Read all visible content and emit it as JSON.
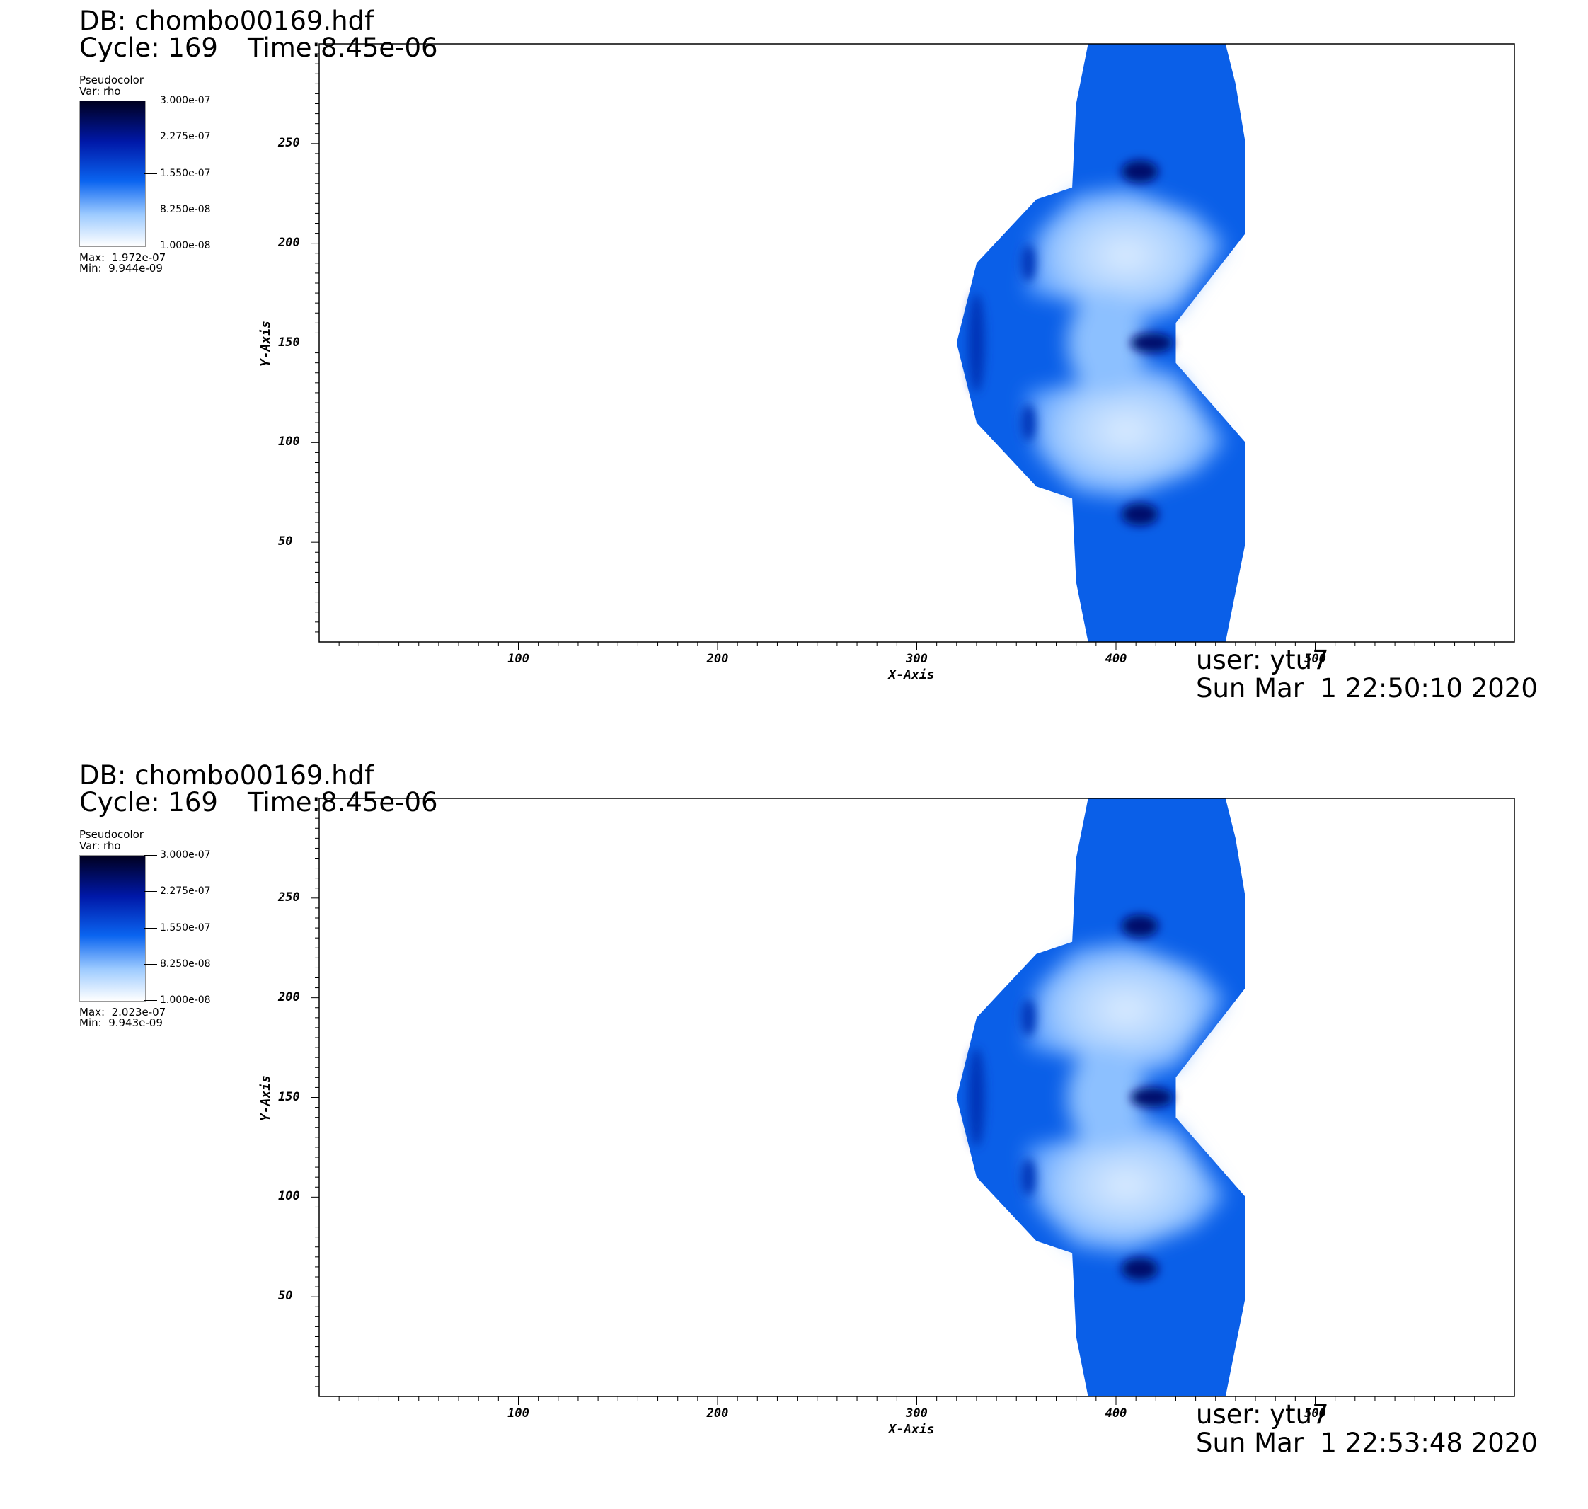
{
  "panels": [
    {
      "db": "DB: chombo00169.hdf",
      "cycle": "Cycle: 169",
      "time": "Time:8.45e-06",
      "legend": {
        "plot_type": "Pseudocolor",
        "var": "Var: rho",
        "ticks": [
          "3.000e-07",
          "2.275e-07",
          "1.550e-07",
          "8.250e-08",
          "1.000e-08"
        ],
        "max": "Max:  1.972e-07",
        "min": "Min:  9.944e-09"
      },
      "user": "user: ytu7",
      "date": "Sun Mar  1 22:50:10 2020"
    },
    {
      "db": "DB: chombo00169.hdf",
      "cycle": "Cycle: 169",
      "time": "Time:8.45e-06",
      "legend": {
        "plot_type": "Pseudocolor",
        "var": "Var: rho",
        "ticks": [
          "3.000e-07",
          "2.275e-07",
          "1.550e-07",
          "8.250e-08",
          "1.000e-08"
        ],
        "max": "Max:  2.023e-07",
        "min": "Min:  9.943e-09"
      },
      "user": "user: ytu7",
      "date": "Sun Mar  1 22:53:48 2020"
    }
  ],
  "chart_data": [
    {
      "type": "heatmap",
      "title": "",
      "xlabel": "X-Axis",
      "ylabel": "Y-Axis",
      "xlim": [
        0,
        600
      ],
      "ylim": [
        0,
        300
      ],
      "xticks": [
        100,
        200,
        300,
        400,
        500
      ],
      "yticks": [
        50,
        100,
        150,
        200,
        250
      ],
      "variable": "rho",
      "colorbar_range": [
        1e-08,
        3e-07
      ],
      "colormap": [
        "#ffffff",
        "#9ccaff",
        "#0a64f0",
        "#0018a8",
        "#000020"
      ],
      "field_max": 1.972e-07,
      "field_min": 9.944e-09
    },
    {
      "type": "heatmap",
      "title": "",
      "xlabel": "X-Axis",
      "ylabel": "Y-Axis",
      "xlim": [
        0,
        600
      ],
      "ylim": [
        0,
        300
      ],
      "xticks": [
        100,
        200,
        300,
        400,
        500
      ],
      "yticks": [
        50,
        100,
        150,
        200,
        250
      ],
      "variable": "rho",
      "colorbar_range": [
        1e-08,
        3e-07
      ],
      "colormap": [
        "#ffffff",
        "#9ccaff",
        "#0a64f0",
        "#0018a8",
        "#000020"
      ],
      "field_max": 2.023e-07,
      "field_min": 9.943e-09
    }
  ]
}
